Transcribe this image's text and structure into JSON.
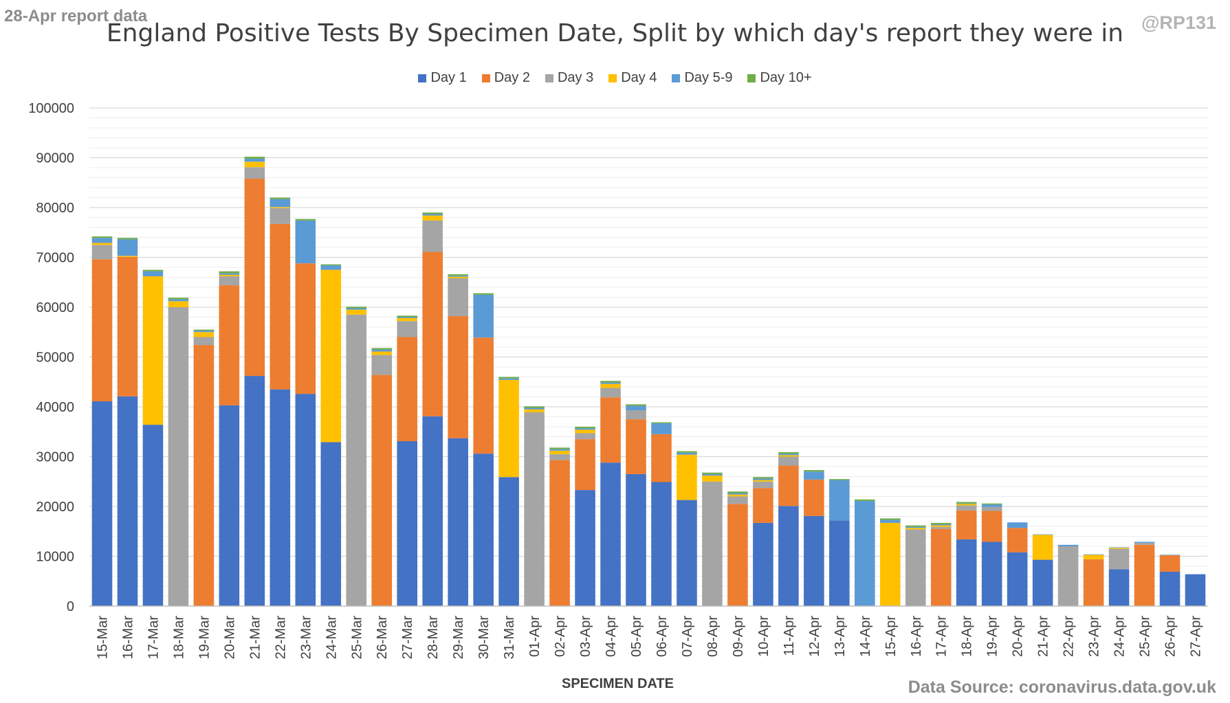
{
  "corner_left": "28-Apr report data",
  "corner_right": "@RP131",
  "source": "Data Source: coronavirus.data.gov.uk",
  "chart_data": {
    "type": "bar",
    "stacked": true,
    "title": "England Positive Tests By Specimen Date, Split by which day's report they were in",
    "xlabel": "SPECIMEN DATE",
    "ylabel": "",
    "ylim": [
      0,
      100000
    ],
    "yticks": [
      0,
      10000,
      20000,
      30000,
      40000,
      50000,
      60000,
      70000,
      80000,
      90000,
      100000
    ],
    "grid": true,
    "legend_position": "top",
    "categories": [
      "15-Mar",
      "16-Mar",
      "17-Mar",
      "18-Mar",
      "19-Mar",
      "20-Mar",
      "21-Mar",
      "22-Mar",
      "23-Mar",
      "24-Mar",
      "25-Mar",
      "26-Mar",
      "27-Mar",
      "28-Mar",
      "29-Mar",
      "30-Mar",
      "31-Mar",
      "01-Apr",
      "02-Apr",
      "03-Apr",
      "04-Apr",
      "05-Apr",
      "06-Apr",
      "07-Apr",
      "08-Apr",
      "09-Apr",
      "10-Apr",
      "11-Apr",
      "12-Apr",
      "13-Apr",
      "14-Apr",
      "15-Apr",
      "16-Apr",
      "17-Apr",
      "18-Apr",
      "19-Apr",
      "20-Apr",
      "21-Apr",
      "22-Apr",
      "23-Apr",
      "24-Apr",
      "25-Apr",
      "26-Apr",
      "27-Apr"
    ],
    "series": [
      {
        "name": "Day 1",
        "color": "#4472c4",
        "values": [
          41100,
          42100,
          36400,
          0,
          0,
          40300,
          46200,
          43500,
          42600,
          32900,
          0,
          0,
          33100,
          38100,
          33700,
          30600,
          25900,
          0,
          0,
          23300,
          28800,
          26500,
          24900,
          21300,
          0,
          0,
          16700,
          20100,
          18100,
          17200,
          0,
          0,
          0,
          0,
          13400,
          12900,
          10800,
          9300,
          0,
          0,
          7400,
          0,
          6900,
          6400
        ]
      },
      {
        "name": "Day 2",
        "color": "#ed7d31",
        "values": [
          28500,
          28000,
          0,
          0,
          52400,
          24100,
          39600,
          33200,
          26200,
          0,
          0,
          46400,
          20900,
          33000,
          24500,
          23300,
          0,
          0,
          29300,
          10200,
          13100,
          11000,
          9600,
          0,
          0,
          20500,
          7000,
          8100,
          7300,
          0,
          0,
          0,
          0,
          15500,
          5800,
          6200,
          4900,
          0,
          0,
          9400,
          0,
          12300,
          3300,
          0
        ]
      },
      {
        "name": "Day 3",
        "color": "#a5a5a5",
        "values": [
          2900,
          0,
          0,
          60000,
          1600,
          1800,
          2300,
          3200,
          0,
          0,
          58500,
          4000,
          3200,
          6300,
          7600,
          0,
          0,
          38900,
          1200,
          1200,
          1900,
          1800,
          0,
          0,
          25000,
          1500,
          1300,
          1800,
          0,
          0,
          0,
          0,
          15400,
          400,
          1000,
          800,
          0,
          0,
          12000,
          0,
          4100,
          400,
          0,
          0
        ]
      },
      {
        "name": "Day 4",
        "color": "#ffc000",
        "values": [
          400,
          200,
          29800,
          1200,
          1000,
          300,
          1100,
          200,
          0,
          34600,
          1000,
          700,
          600,
          1000,
          300,
          0,
          19500,
          600,
          700,
          700,
          800,
          0,
          0,
          9100,
          1200,
          400,
          300,
          300,
          0,
          0,
          0,
          16700,
          300,
          300,
          300,
          0,
          0,
          5000,
          0,
          900,
          200,
          0,
          0,
          0
        ]
      },
      {
        "name": "Day 5-9",
        "color": "#5b9bd5",
        "values": [
          1000,
          3300,
          1000,
          400,
          300,
          300,
          600,
          1600,
          8600,
          900,
          300,
          400,
          200,
          300,
          200,
          8600,
          300,
          300,
          300,
          300,
          300,
          900,
          2200,
          400,
          300,
          300,
          300,
          300,
          1600,
          8100,
          21100,
          600,
          200,
          200,
          100,
          500,
          1100,
          100,
          300,
          100,
          100,
          200,
          100,
          0
        ]
      },
      {
        "name": "Day 10+",
        "color": "#70ad47",
        "values": [
          300,
          300,
          300,
          300,
          200,
          400,
          400,
          300,
          300,
          200,
          300,
          300,
          300,
          300,
          300,
          300,
          300,
          300,
          300,
          300,
          300,
          300,
          200,
          300,
          300,
          300,
          300,
          300,
          300,
          200,
          300,
          300,
          300,
          300,
          300,
          200,
          0,
          0,
          0,
          0,
          0,
          0,
          0,
          0
        ]
      }
    ]
  }
}
